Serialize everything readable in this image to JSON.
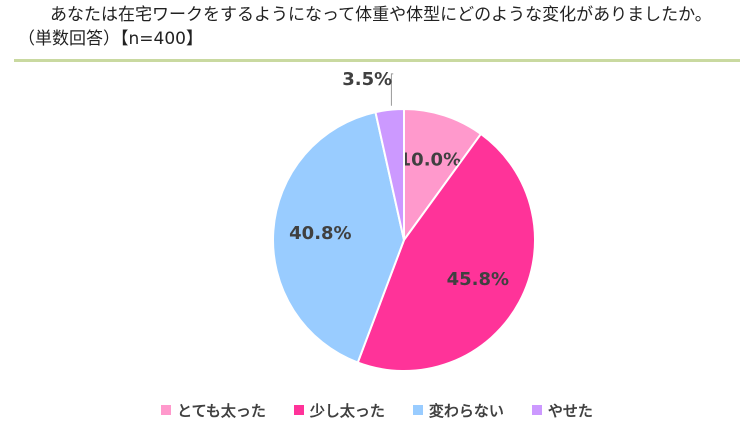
{
  "header": {
    "question": "あなたは在宅ワークをするようになって体重や体型にどのような変化がありましたか。",
    "subtitle": "（単数回答）【n=400】"
  },
  "chart_data": {
    "type": "pie",
    "title": "あなたは在宅ワークをするようになって体重や体型にどのような変化がありましたか。",
    "subtitle": "（単数回答）【n=400】",
    "legend_position": "bottom",
    "slices": [
      {
        "name": "とても太った",
        "value": 10.0,
        "label": "10.0%",
        "color": "#ff99cc"
      },
      {
        "name": "少し太った",
        "value": 45.8,
        "label": "45.8%",
        "color": "#ff3399"
      },
      {
        "name": "変わらない",
        "value": 40.8,
        "label": "40.8%",
        "color": "#99ccff"
      },
      {
        "name": "やせた",
        "value": 3.5,
        "label": "3.5%",
        "color": "#cc99ff"
      }
    ]
  }
}
